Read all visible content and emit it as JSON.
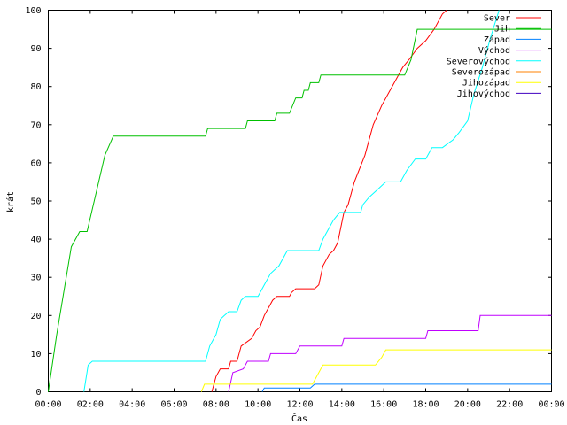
{
  "chart_data": {
    "type": "line",
    "title": "",
    "xlabel": "Čas",
    "ylabel": "krát",
    "xlim": [
      0,
      24
    ],
    "ylim": [
      0,
      100
    ],
    "x_ticks": [
      "00:00",
      "02:00",
      "04:00",
      "06:00",
      "08:00",
      "10:00",
      "12:00",
      "14:00",
      "16:00",
      "18:00",
      "20:00",
      "22:00",
      "00:00"
    ],
    "y_ticks": [
      "0",
      "10",
      "20",
      "30",
      "40",
      "50",
      "60",
      "70",
      "80",
      "90",
      "100"
    ],
    "legend_position": "top-right",
    "series": [
      {
        "name": "Sever",
        "color": "#ff0000",
        "points": [
          [
            7.8,
            0
          ],
          [
            8.0,
            4
          ],
          [
            8.2,
            6
          ],
          [
            8.6,
            6
          ],
          [
            8.7,
            8
          ],
          [
            9.0,
            8
          ],
          [
            9.2,
            12
          ],
          [
            9.7,
            14
          ],
          [
            9.9,
            16
          ],
          [
            10.1,
            17
          ],
          [
            10.3,
            20
          ],
          [
            10.5,
            22
          ],
          [
            10.7,
            24
          ],
          [
            10.9,
            25
          ],
          [
            11.5,
            25
          ],
          [
            11.6,
            26
          ],
          [
            11.8,
            27
          ],
          [
            12.7,
            27
          ],
          [
            12.9,
            28
          ],
          [
            13.1,
            33
          ],
          [
            13.4,
            36
          ],
          [
            13.6,
            37
          ],
          [
            13.8,
            39
          ],
          [
            14.1,
            47
          ],
          [
            14.3,
            49
          ],
          [
            14.6,
            55
          ],
          [
            15.1,
            62
          ],
          [
            15.5,
            70
          ],
          [
            15.9,
            75
          ],
          [
            16.3,
            79
          ],
          [
            16.6,
            82
          ],
          [
            16.9,
            85
          ],
          [
            17.2,
            87
          ],
          [
            17.6,
            90
          ],
          [
            18.0,
            92
          ],
          [
            18.4,
            95
          ],
          [
            18.8,
            99
          ],
          [
            19.0,
            100
          ]
        ]
      },
      {
        "name": "Jih",
        "color": "#00c000",
        "points": [
          [
            0.0,
            0
          ],
          [
            0.4,
            15
          ],
          [
            1.1,
            38
          ],
          [
            1.5,
            42
          ],
          [
            1.85,
            42
          ],
          [
            2.7,
            62
          ],
          [
            3.1,
            67
          ],
          [
            7.5,
            67
          ],
          [
            7.6,
            69
          ],
          [
            9.4,
            69
          ],
          [
            9.5,
            71
          ],
          [
            10.8,
            71
          ],
          [
            10.9,
            73
          ],
          [
            11.5,
            73
          ],
          [
            11.8,
            77
          ],
          [
            12.1,
            77
          ],
          [
            12.2,
            79
          ],
          [
            12.4,
            79
          ],
          [
            12.5,
            81
          ],
          [
            12.9,
            81
          ],
          [
            13.0,
            83
          ],
          [
            17.0,
            83
          ],
          [
            17.3,
            87
          ],
          [
            17.6,
            95
          ],
          [
            24.0,
            95
          ]
        ]
      },
      {
        "name": "Západ",
        "color": "#0080ff",
        "points": [
          [
            10.2,
            0
          ],
          [
            10.3,
            1
          ],
          [
            12.5,
            1
          ],
          [
            12.7,
            2
          ],
          [
            24.0,
            2
          ]
        ]
      },
      {
        "name": "Východ",
        "color": "#c000ff",
        "points": [
          [
            8.6,
            0
          ],
          [
            8.8,
            5
          ],
          [
            9.3,
            6
          ],
          [
            9.5,
            8
          ],
          [
            10.5,
            8
          ],
          [
            10.6,
            10
          ],
          [
            11.8,
            10
          ],
          [
            12.0,
            12
          ],
          [
            14.0,
            12
          ],
          [
            14.1,
            14
          ],
          [
            18.0,
            14
          ],
          [
            18.1,
            16
          ],
          [
            20.5,
            16
          ],
          [
            20.6,
            20
          ],
          [
            24.0,
            20
          ]
        ]
      },
      {
        "name": "Severovýchod",
        "color": "#00ffff",
        "points": [
          [
            1.7,
            0
          ],
          [
            1.9,
            7
          ],
          [
            2.1,
            8
          ],
          [
            7.5,
            8
          ],
          [
            7.7,
            12
          ],
          [
            8.0,
            15
          ],
          [
            8.2,
            19
          ],
          [
            8.4,
            20
          ],
          [
            8.6,
            21
          ],
          [
            9.0,
            21
          ],
          [
            9.2,
            24
          ],
          [
            9.4,
            25
          ],
          [
            10.0,
            25
          ],
          [
            10.3,
            28
          ],
          [
            10.6,
            31
          ],
          [
            11.0,
            33
          ],
          [
            11.2,
            35
          ],
          [
            11.4,
            37
          ],
          [
            12.9,
            37
          ],
          [
            13.1,
            40
          ],
          [
            13.4,
            43
          ],
          [
            13.6,
            45
          ],
          [
            13.9,
            47
          ],
          [
            14.9,
            47
          ],
          [
            15.0,
            49
          ],
          [
            15.3,
            51
          ],
          [
            15.7,
            53
          ],
          [
            16.1,
            55
          ],
          [
            16.8,
            55
          ],
          [
            17.1,
            58
          ],
          [
            17.5,
            61
          ],
          [
            18.0,
            61
          ],
          [
            18.3,
            64
          ],
          [
            18.8,
            64
          ],
          [
            19.3,
            66
          ],
          [
            19.6,
            68
          ],
          [
            20.0,
            71
          ],
          [
            20.3,
            78
          ],
          [
            20.7,
            85
          ],
          [
            21.1,
            93
          ],
          [
            21.5,
            100
          ]
        ]
      },
      {
        "name": "Severozápad",
        "color": "#ff8000",
        "points": []
      },
      {
        "name": "Jihozápad",
        "color": "#ffff00",
        "points": [
          [
            7.3,
            0
          ],
          [
            7.45,
            2
          ],
          [
            11.6,
            2
          ],
          [
            11.8,
            2
          ],
          [
            12.6,
            2
          ],
          [
            12.9,
            5
          ],
          [
            13.1,
            7
          ],
          [
            15.6,
            7
          ],
          [
            15.9,
            9
          ],
          [
            16.1,
            11
          ],
          [
            24.0,
            11
          ]
        ]
      },
      {
        "name": "Jihovýchod",
        "color": "#4000c0",
        "points": []
      }
    ]
  }
}
